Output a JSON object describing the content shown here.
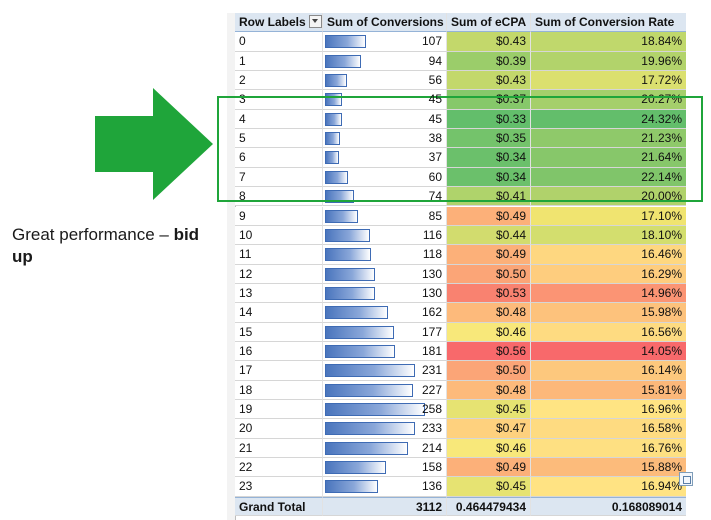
{
  "annotation": {
    "text_normal": "Great performance – ",
    "text_bold": "bid up"
  },
  "headers": {
    "row_labels": "Row Labels",
    "conversions": "Sum of Conversions",
    "ecpa": "Sum of eCPA",
    "rate": "Sum of Conversion Rate"
  },
  "rows": [
    {
      "label": "0",
      "conversions": 107,
      "ecpa": "$0.43",
      "rate": "18.84%",
      "ecpa_color": "#c3d86b",
      "rate_color": "#c0d86c"
    },
    {
      "label": "1",
      "conversions": 94,
      "ecpa": "$0.39",
      "rate": "19.96%",
      "ecpa_color": "#9bcd6a",
      "rate_color": "#b2d36b"
    },
    {
      "label": "2",
      "conversions": 56,
      "ecpa": "$0.43",
      "rate": "17.72%",
      "ecpa_color": "#c3d86b",
      "rate_color": "#dbe06f"
    },
    {
      "label": "3",
      "conversions": 45,
      "ecpa": "$0.37",
      "rate": "20.27%",
      "ecpa_color": "#86c86a",
      "rate_color": "#a5cf6b"
    },
    {
      "label": "4",
      "conversions": 45,
      "ecpa": "$0.33",
      "rate": "24.32%",
      "ecpa_color": "#63be6b",
      "rate_color": "#63be6b"
    },
    {
      "label": "5",
      "conversions": 38,
      "ecpa": "$0.35",
      "rate": "21.23%",
      "ecpa_color": "#74c36b",
      "rate_color": "#8fc96a"
    },
    {
      "label": "6",
      "conversions": 37,
      "ecpa": "$0.34",
      "rate": "21.64%",
      "ecpa_color": "#6bc06b",
      "rate_color": "#87c76a"
    },
    {
      "label": "7",
      "conversions": 60,
      "ecpa": "$0.34",
      "rate": "22.14%",
      "ecpa_color": "#6bc06b",
      "rate_color": "#80c56a"
    },
    {
      "label": "8",
      "conversions": 74,
      "ecpa": "$0.41",
      "rate": "20.00%",
      "ecpa_color": "#afd36b",
      "rate_color": "#b0d26b"
    },
    {
      "label": "9",
      "conversions": 85,
      "ecpa": "$0.49",
      "rate": "17.10%",
      "ecpa_color": "#fcb079",
      "rate_color": "#f0e470"
    },
    {
      "label": "10",
      "conversions": 116,
      "ecpa": "$0.44",
      "rate": "18.10%",
      "ecpa_color": "#d2dc6e",
      "rate_color": "#d3de6e"
    },
    {
      "label": "11",
      "conversions": 118,
      "ecpa": "$0.49",
      "rate": "16.46%",
      "ecpa_color": "#fcb079",
      "rate_color": "#fed780"
    },
    {
      "label": "12",
      "conversions": 130,
      "ecpa": "$0.50",
      "rate": "16.29%",
      "ecpa_color": "#fba577",
      "rate_color": "#fecd7e"
    },
    {
      "label": "13",
      "conversions": 130,
      "ecpa": "$0.53",
      "rate": "14.96%",
      "ecpa_color": "#f98270",
      "rate_color": "#fb9474"
    },
    {
      "label": "14",
      "conversions": 162,
      "ecpa": "$0.48",
      "rate": "15.98%",
      "ecpa_color": "#fdba7b",
      "rate_color": "#fdc27c"
    },
    {
      "label": "15",
      "conversions": 177,
      "ecpa": "$0.46",
      "rate": "16.56%",
      "ecpa_color": "#f8e87a",
      "rate_color": "#fedb81"
    },
    {
      "label": "16",
      "conversions": 181,
      "ecpa": "$0.56",
      "rate": "14.05%",
      "ecpa_color": "#f8696b",
      "rate_color": "#f8696b"
    },
    {
      "label": "17",
      "conversions": 231,
      "ecpa": "$0.50",
      "rate": "16.14%",
      "ecpa_color": "#fba577",
      "rate_color": "#fdc87d"
    },
    {
      "label": "18",
      "conversions": 227,
      "ecpa": "$0.48",
      "rate": "15.81%",
      "ecpa_color": "#fdba7b",
      "rate_color": "#fcb87a"
    },
    {
      "label": "19",
      "conversions": 258,
      "ecpa": "$0.45",
      "rate": "16.96%",
      "ecpa_color": "#e6e372",
      "rate_color": "#ffe483"
    },
    {
      "label": "20",
      "conversions": 233,
      "ecpa": "$0.47",
      "rate": "16.58%",
      "ecpa_color": "#fed17e",
      "rate_color": "#fedb81"
    },
    {
      "label": "21",
      "conversions": 214,
      "ecpa": "$0.46",
      "rate": "16.76%",
      "ecpa_color": "#f8e87a",
      "rate_color": "#fee082"
    },
    {
      "label": "22",
      "conversions": 158,
      "ecpa": "$0.49",
      "rate": "15.88%",
      "ecpa_color": "#fcb079",
      "rate_color": "#fcbb7b"
    },
    {
      "label": "23",
      "conversions": 136,
      "ecpa": "$0.45",
      "rate": "16.94%",
      "ecpa_color": "#e6e372",
      "rate_color": "#ffe383"
    }
  ],
  "grand_total": {
    "label": "Grand Total",
    "conversions": "3112",
    "ecpa": "0.464479434",
    "rate": "0.168089014"
  },
  "row_header_fragments": [
    "",
    "",
    "",
    "",
    "",
    "",
    "",
    "",
    "",
    "",
    "",
    "",
    "",
    "",
    "",
    "",
    "",
    "",
    "",
    "",
    "",
    "",
    "",
    "",
    "",
    ""
  ],
  "colors": {
    "header_fill": "#dce6f1",
    "highlight_border": "#1fa53a",
    "arrow_fill": "#1fa53a",
    "databar": "#4a75bd"
  },
  "icons": {
    "arrow": "right-arrow-icon",
    "filter": "filter-dropdown-icon",
    "smarttag": "paste-options-icon"
  }
}
